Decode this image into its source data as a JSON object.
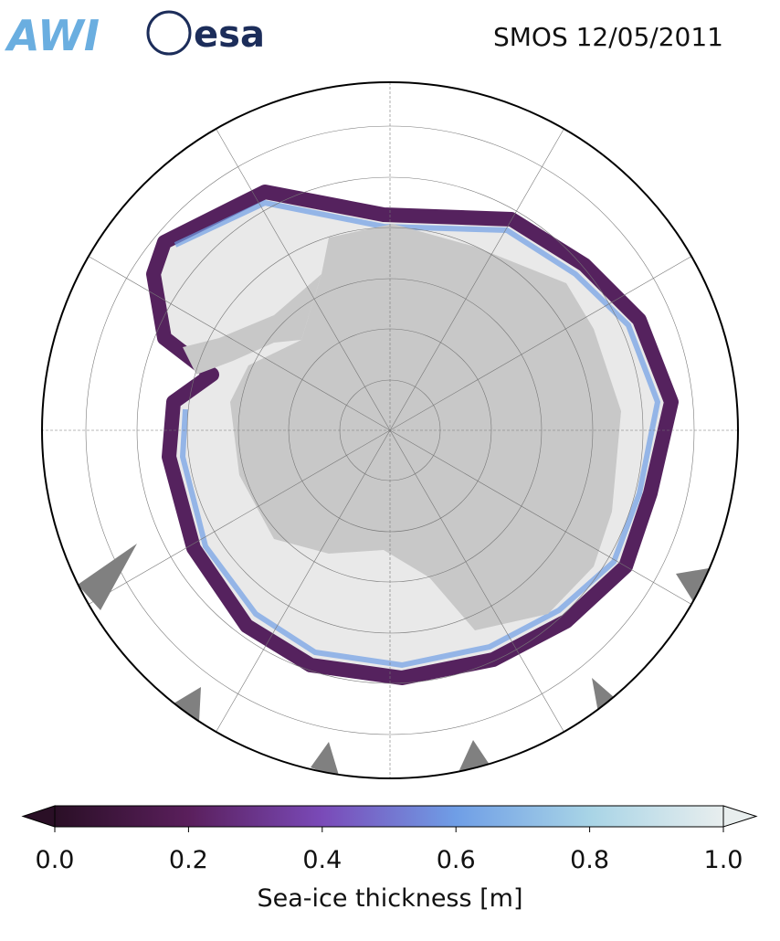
{
  "header": {
    "logos": [
      "AWI",
      "esa"
    ],
    "title": "SMOS 12/05/2011"
  },
  "colorbar": {
    "label": "Sea-ice thickness [m]",
    "lim": [
      0,
      1
    ],
    "ticks": [
      {
        "value": 0,
        "label": "0.0"
      },
      {
        "value": 0.2,
        "label": "0.2"
      },
      {
        "value": 0.4,
        "label": "0.4"
      },
      {
        "value": 0.6,
        "label": "0.6"
      },
      {
        "value": 0.8,
        "label": "0.8"
      },
      {
        "value": 1,
        "label": "1.0"
      }
    ],
    "colors": [
      "#2a0f26",
      "#5a1f5c",
      "#7a4ab8",
      "#6f9ee6",
      "#a8d4e6",
      "#e8eeee"
    ]
  }
}
